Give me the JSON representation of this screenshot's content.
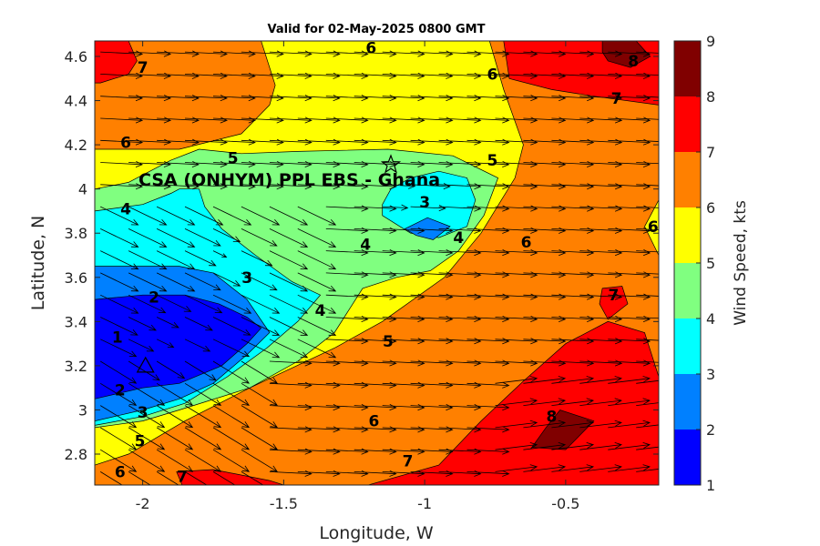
{
  "chart_data": {
    "type": "heatmap",
    "title": "Valid for 02-May-2025 0800 GMT",
    "xlabel": "Longitude, W",
    "ylabel": "Latitude, N",
    "xlim": [
      -2.17,
      -0.17
    ],
    "ylim": [
      2.66,
      4.67
    ],
    "x_ticks": [
      "-2",
      "-1.5",
      "-1",
      "-0.5"
    ],
    "x_tick_values": [
      -2,
      -1.5,
      -1,
      -0.5
    ],
    "y_ticks": [
      "2.8",
      "3",
      "3.2",
      "3.4",
      "3.6",
      "3.8",
      "4",
      "4.2",
      "4.4",
      "4.6"
    ],
    "y_tick_values": [
      2.8,
      3.0,
      3.2,
      3.4,
      3.6,
      3.8,
      4.0,
      4.2,
      4.4,
      4.6
    ],
    "colorbar": {
      "label": "Wind Speed, kts",
      "levels": [
        1,
        2,
        3,
        4,
        5,
        6,
        7,
        8,
        9
      ],
      "tick_labels": [
        "1",
        "2",
        "3",
        "4",
        "5",
        "6",
        "7",
        "8",
        "9"
      ],
      "colors": [
        "#0000ff",
        "#0080ff",
        "#00ffff",
        "#80ff80",
        "#ffff00",
        "#ff8000",
        "#ff0000",
        "#800000"
      ]
    },
    "background_color": "#ff8000",
    "grid": false,
    "annotation": {
      "text": "CSA (ONHYM) PPL EBS  - Ghana",
      "lon": -1.12,
      "lat": 4.11,
      "marker": "star"
    },
    "secondary_marker": {
      "marker": "triangle",
      "lon": -1.99,
      "lat": 3.2
    },
    "regions": [
      {
        "level": "6-7",
        "color": "#ff8000",
        "polygon": [
          [
            -2.17,
            2.66
          ],
          [
            -0.17,
            2.66
          ],
          [
            -0.17,
            4.67
          ],
          [
            -2.17,
            4.67
          ]
        ]
      },
      {
        "level": "5-6",
        "color": "#ffff00",
        "polygon": [
          [
            -1.58,
            4.67
          ],
          [
            -0.77,
            4.67
          ],
          [
            -0.72,
            4.45
          ],
          [
            -0.65,
            4.2
          ],
          [
            -0.68,
            4.05
          ],
          [
            -0.8,
            3.8
          ],
          [
            -0.93,
            3.6
          ],
          [
            -1.15,
            3.4
          ],
          [
            -1.32,
            3.28
          ],
          [
            -1.62,
            3.1
          ],
          [
            -1.85,
            2.95
          ],
          [
            -2.05,
            2.8
          ],
          [
            -2.17,
            2.75
          ],
          [
            -2.17,
            4.18
          ],
          [
            -1.87,
            4.18
          ],
          [
            -1.65,
            4.25
          ],
          [
            -1.55,
            4.38
          ],
          [
            -1.53,
            4.47
          ]
        ]
      },
      {
        "level": "5-6",
        "color": "#ffff00",
        "polygon": [
          [
            -0.17,
            3.95
          ],
          [
            -0.17,
            3.7
          ],
          [
            -0.22,
            3.83
          ]
        ]
      },
      {
        "level": "4-5",
        "color": "#80ff80",
        "polygon": [
          [
            -2.17,
            2.92
          ],
          [
            -2.0,
            2.95
          ],
          [
            -1.87,
            3.0
          ],
          [
            -1.62,
            3.1
          ],
          [
            -1.45,
            3.22
          ],
          [
            -1.32,
            3.35
          ],
          [
            -1.22,
            3.55
          ],
          [
            -1.1,
            3.6
          ],
          [
            -0.98,
            3.63
          ],
          [
            -0.88,
            3.72
          ],
          [
            -0.79,
            3.88
          ],
          [
            -0.74,
            4.05
          ],
          [
            -0.9,
            4.15
          ],
          [
            -1.13,
            4.18
          ],
          [
            -1.45,
            4.17
          ],
          [
            -1.65,
            4.16
          ],
          [
            -1.8,
            4.18
          ],
          [
            -1.9,
            4.13
          ],
          [
            -2.05,
            4.03
          ],
          [
            -2.17,
            4.0
          ]
        ]
      },
      {
        "level": "3-4",
        "color": "#00ffff",
        "polygon": [
          [
            -2.17,
            2.93
          ],
          [
            -2.0,
            2.97
          ],
          [
            -1.85,
            3.03
          ],
          [
            -1.7,
            3.15
          ],
          [
            -1.56,
            3.28
          ],
          [
            -1.45,
            3.4
          ],
          [
            -1.37,
            3.52
          ],
          [
            -1.47,
            3.58
          ],
          [
            -1.6,
            3.7
          ],
          [
            -1.72,
            3.82
          ],
          [
            -1.78,
            3.92
          ],
          [
            -1.8,
            4.0
          ],
          [
            -1.87,
            4.0
          ],
          [
            -1.9,
            3.98
          ],
          [
            -2.0,
            3.93
          ],
          [
            -2.17,
            3.9
          ]
        ]
      },
      {
        "level": "3-4",
        "color": "#00ffff",
        "polygon": [
          [
            -1.15,
            3.88
          ],
          [
            -1.05,
            3.8
          ],
          [
            -0.95,
            3.78
          ],
          [
            -0.85,
            3.83
          ],
          [
            -0.82,
            3.95
          ],
          [
            -0.85,
            4.05
          ],
          [
            -0.95,
            4.08
          ],
          [
            -1.05,
            4.05
          ],
          [
            -1.12,
            4.0
          ],
          [
            -1.15,
            3.93
          ]
        ]
      },
      {
        "level": "2-3",
        "color": "#0080ff",
        "polygon": [
          [
            -2.17,
            2.95
          ],
          [
            -2.0,
            3.0
          ],
          [
            -1.87,
            3.05
          ],
          [
            -1.75,
            3.12
          ],
          [
            -1.63,
            3.25
          ],
          [
            -1.55,
            3.35
          ],
          [
            -1.63,
            3.5
          ],
          [
            -1.75,
            3.62
          ],
          [
            -1.87,
            3.65
          ],
          [
            -2.17,
            3.65
          ]
        ]
      },
      {
        "level": "2-3",
        "color": "#0080ff",
        "polygon": [
          [
            -1.07,
            3.82
          ],
          [
            -0.99,
            3.87
          ],
          [
            -0.91,
            3.83
          ],
          [
            -0.97,
            3.77
          ],
          [
            -1.03,
            3.79
          ]
        ]
      },
      {
        "level": "1-2",
        "color": "#0000ff",
        "polygon": [
          [
            -2.17,
            3.05
          ],
          [
            -2.0,
            3.1
          ],
          [
            -1.87,
            3.12
          ],
          [
            -1.72,
            3.2
          ],
          [
            -1.63,
            3.3
          ],
          [
            -1.58,
            3.37
          ],
          [
            -1.63,
            3.42
          ],
          [
            -1.73,
            3.48
          ],
          [
            -1.85,
            3.52
          ],
          [
            -2.0,
            3.52
          ],
          [
            -2.17,
            3.5
          ]
        ]
      },
      {
        "level": "7-8",
        "color": "#ff0000",
        "polygon": [
          [
            -2.17,
            4.67
          ],
          [
            -2.05,
            4.67
          ],
          [
            -2.02,
            4.58
          ],
          [
            -2.05,
            4.52
          ],
          [
            -2.15,
            4.48
          ],
          [
            -2.17,
            4.48
          ]
        ]
      },
      {
        "level": "7-8",
        "color": "#ff0000",
        "polygon": [
          [
            -0.72,
            4.67
          ],
          [
            -0.17,
            4.67
          ],
          [
            -0.17,
            4.38
          ],
          [
            -0.4,
            4.42
          ],
          [
            -0.55,
            4.45
          ],
          [
            -0.7,
            4.5
          ]
        ]
      },
      {
        "level": "7-8",
        "color": "#ff0000",
        "polygon": [
          [
            -1.86,
            2.66
          ],
          [
            -1.88,
            2.72
          ],
          [
            -1.75,
            2.73
          ],
          [
            -1.55,
            2.68
          ],
          [
            -1.5,
            2.66
          ]
        ]
      },
      {
        "level": "7-8",
        "color": "#ff0000",
        "polygon": [
          [
            -1.2,
            2.66
          ],
          [
            -0.95,
            2.75
          ],
          [
            -0.8,
            2.95
          ],
          [
            -0.65,
            3.13
          ],
          [
            -0.5,
            3.3
          ],
          [
            -0.35,
            3.4
          ],
          [
            -0.22,
            3.35
          ],
          [
            -0.17,
            3.15
          ],
          [
            -0.17,
            2.66
          ]
        ]
      },
      {
        "level": "7-8",
        "color": "#ff0000",
        "polygon": [
          [
            -0.37,
            3.55
          ],
          [
            -0.3,
            3.56
          ],
          [
            -0.28,
            3.48
          ],
          [
            -0.35,
            3.41
          ],
          [
            -0.38,
            3.48
          ]
        ]
      },
      {
        "level": "8-9",
        "color": "#800000",
        "polygon": [
          [
            -0.37,
            4.67
          ],
          [
            -0.25,
            4.67
          ],
          [
            -0.2,
            4.6
          ],
          [
            -0.27,
            4.55
          ],
          [
            -0.35,
            4.58
          ],
          [
            -0.37,
            4.62
          ]
        ]
      },
      {
        "level": "8-9",
        "color": "#800000",
        "polygon": [
          [
            -0.62,
            2.83
          ],
          [
            -0.5,
            2.82
          ],
          [
            -0.4,
            2.95
          ],
          [
            -0.52,
            3.0
          ],
          [
            -0.57,
            2.92
          ]
        ]
      }
    ],
    "contour_labels": [
      {
        "text": "6",
        "lon": -1.19,
        "lat": 4.64
      },
      {
        "text": "7",
        "lon": -2.0,
        "lat": 4.55
      },
      {
        "text": "6",
        "lon": -0.76,
        "lat": 4.52
      },
      {
        "text": "8",
        "lon": -0.26,
        "lat": 4.58
      },
      {
        "text": "7",
        "lon": -0.32,
        "lat": 4.41
      },
      {
        "text": "6",
        "lon": -2.06,
        "lat": 4.21
      },
      {
        "text": "5",
        "lon": -1.68,
        "lat": 4.14
      },
      {
        "text": "5",
        "lon": -0.76,
        "lat": 4.13
      },
      {
        "text": "4",
        "lon": -2.06,
        "lat": 3.91
      },
      {
        "text": "3",
        "lon": -1.0,
        "lat": 3.94
      },
      {
        "text": "4",
        "lon": -1.21,
        "lat": 3.75
      },
      {
        "text": "4",
        "lon": -0.88,
        "lat": 3.78
      },
      {
        "text": "6",
        "lon": -0.64,
        "lat": 3.76
      },
      {
        "text": "6",
        "lon": -0.19,
        "lat": 3.83
      },
      {
        "text": "3",
        "lon": -1.63,
        "lat": 3.6
      },
      {
        "text": "2",
        "lon": -1.96,
        "lat": 3.51
      },
      {
        "text": "4",
        "lon": -1.37,
        "lat": 3.45
      },
      {
        "text": "7",
        "lon": -0.33,
        "lat": 3.52
      },
      {
        "text": "1",
        "lon": -2.09,
        "lat": 3.33
      },
      {
        "text": "5",
        "lon": -1.13,
        "lat": 3.31
      },
      {
        "text": "2",
        "lon": -2.08,
        "lat": 3.09
      },
      {
        "text": "3",
        "lon": -2.0,
        "lat": 2.99
      },
      {
        "text": "6",
        "lon": -1.18,
        "lat": 2.95
      },
      {
        "text": "8",
        "lon": -0.55,
        "lat": 2.97
      },
      {
        "text": "5",
        "lon": -2.01,
        "lat": 2.86
      },
      {
        "text": "6",
        "lon": -2.08,
        "lat": 2.72
      },
      {
        "text": "7",
        "lon": -1.86,
        "lat": 2.7
      },
      {
        "text": "7",
        "lon": -1.06,
        "lat": 2.77
      }
    ]
  }
}
